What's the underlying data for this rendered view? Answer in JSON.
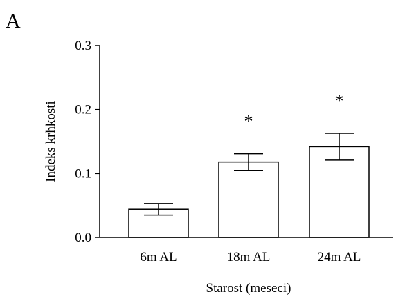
{
  "panel_label": "A",
  "chart_data": {
    "type": "bar",
    "title": "",
    "categories": [
      "6m AL",
      "18m AL",
      "24m AL"
    ],
    "values": [
      0.044,
      0.118,
      0.142
    ],
    "errors": [
      0.009,
      0.013,
      0.021
    ],
    "significance": [
      "",
      "*",
      "*"
    ],
    "xlabel": "Starost (meseci)",
    "ylabel": "Indeks krhkosti",
    "ylim": [
      0,
      0.3
    ],
    "yticks": [
      "0.0",
      "0.1",
      "0.2",
      "0.3"
    ],
    "ytick_values": [
      0,
      0.1,
      0.2,
      0.3
    ],
    "grid": false,
    "bar_fill": "#ffffff",
    "bar_stroke": "#000000"
  }
}
